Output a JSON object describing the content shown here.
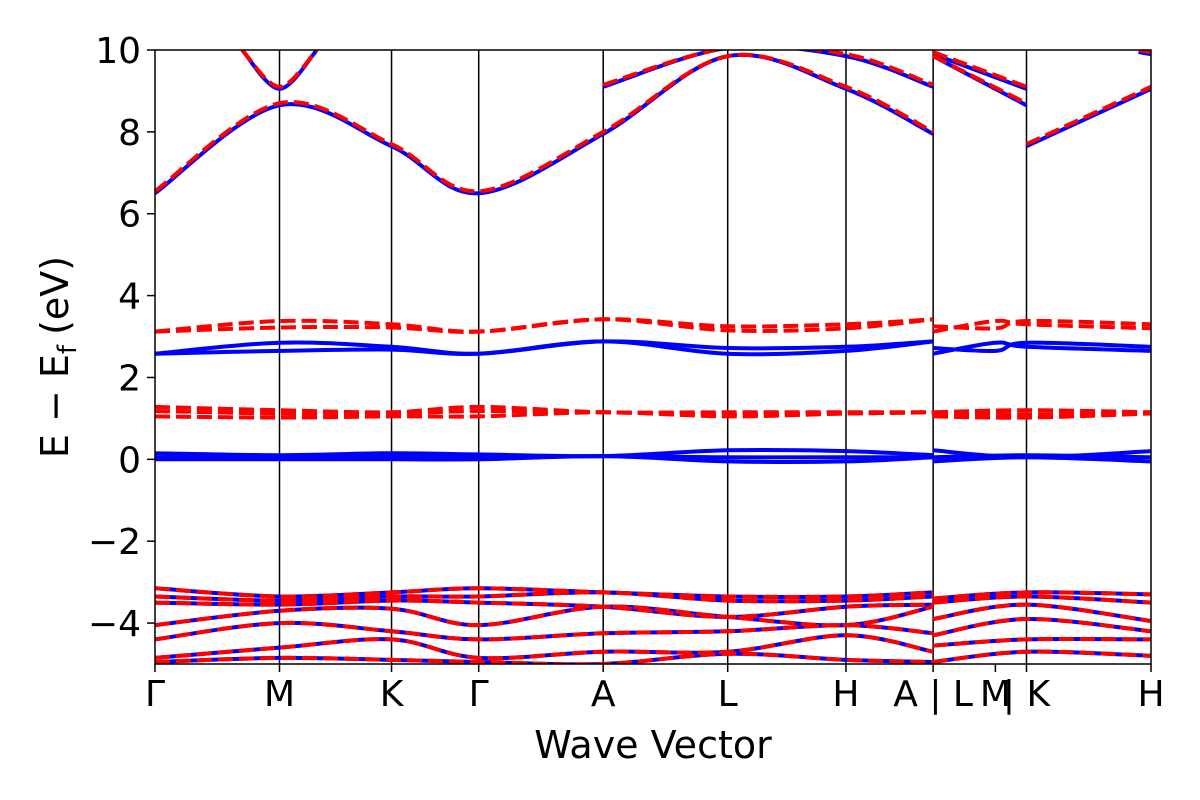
{
  "chart_data": {
    "type": "line",
    "title": "",
    "xlabel": "Wave Vector",
    "ylabel": "E − E",
    "ylabel_subscript": "f",
    "ylabel_unit": "(eV)",
    "ylim": [
      -5,
      10
    ],
    "yticks": [
      10,
      8,
      6,
      4,
      2,
      0,
      -2,
      -4
    ],
    "ytick_labels": [
      "10",
      "8",
      "6",
      "4",
      "2",
      "0",
      "−2",
      "−4"
    ],
    "x_path": [
      0,
      1.0,
      1.9,
      2.6,
      3.6,
      4.6,
      5.55,
      6.25,
      6.25,
      7.0,
      7.0,
      8.0
    ],
    "kpoint_labels": [
      {
        "x": 0,
        "label": "Γ"
      },
      {
        "x": 1.0,
        "label": "M"
      },
      {
        "x": 1.9,
        "label": "K"
      },
      {
        "x": 2.6,
        "label": "Γ"
      },
      {
        "x": 3.6,
        "label": "A"
      },
      {
        "x": 4.6,
        "label": "L"
      },
      {
        "x": 5.55,
        "label": "H"
      },
      {
        "x": 6.25,
        "label": "A | L"
      },
      {
        "x": 6.75,
        "label": "M"
      },
      {
        "x": 7.0,
        "label": "| K"
      },
      {
        "x": 8.0,
        "label": "H"
      }
    ],
    "xlim": [
      0,
      8.0
    ],
    "vlines": [
      1.0,
      1.9,
      2.6,
      3.6,
      4.6,
      5.55,
      6.25,
      7.0
    ],
    "grid": false,
    "series": [
      {
        "style": "solid",
        "color": "#0000ff",
        "bands": [
          {
            "x": [
              0,
              1.0,
              1.9,
              2.6,
              3.6,
              4.6,
              5.55,
              6.25
            ],
            "y": [
              6.5,
              8.65,
              7.65,
              6.5,
              7.95,
              9.85,
              9.05,
              7.95
            ]
          },
          {
            "x": [
              0.7,
              1.0,
              1.3
            ],
            "y": [
              10.0,
              9.05,
              10.0
            ]
          },
          {
            "x": [
              3.6,
              4.6,
              5.55,
              6.25
            ],
            "y": [
              9.1,
              10.05,
              9.85,
              9.1
            ]
          },
          {
            "x": [
              6.25,
              7.0
            ],
            "y": [
              9.85,
              8.65
            ]
          },
          {
            "x": [
              6.25,
              7.0
            ],
            "y": [
              9.9,
              9.05
            ]
          },
          {
            "x": [
              7.0,
              8.0
            ],
            "y": [
              7.65,
              9.05
            ]
          },
          {
            "x": [
              7.9,
              8.0
            ],
            "y": [
              9.95,
              9.9
            ]
          },
          {
            "x": [
              0,
              1.0,
              1.9,
              2.6,
              3.6,
              4.6,
              5.55,
              6.25
            ],
            "y": [
              2.58,
              2.85,
              2.75,
              2.58,
              2.88,
              2.72,
              2.75,
              2.88
            ]
          },
          {
            "x": [
              0,
              1.0,
              1.9,
              2.6,
              3.6,
              4.6,
              5.55,
              6.25
            ],
            "y": [
              2.58,
              2.65,
              2.68,
              2.58,
              2.88,
              2.58,
              2.65,
              2.88
            ]
          },
          {
            "x": [
              6.25,
              6.75,
              7.0,
              8.0
            ],
            "y": [
              2.72,
              2.65,
              2.85,
              2.75
            ]
          },
          {
            "x": [
              6.25,
              6.75,
              7.0,
              8.0
            ],
            "y": [
              2.58,
              2.85,
              2.75,
              2.65
            ]
          },
          {
            "x": [
              0,
              1.0,
              1.9,
              2.6,
              3.6,
              4.6,
              5.55,
              6.25
            ],
            "y": [
              0.15,
              0.1,
              0.15,
              0.12,
              0.08,
              0.22,
              0.2,
              0.1
            ]
          },
          {
            "x": [
              0,
              1.0,
              1.9,
              2.6,
              3.6,
              4.6,
              5.55,
              6.25
            ],
            "y": [
              0.05,
              0.05,
              0.08,
              0.05,
              0.08,
              0.05,
              0.05,
              0.05
            ]
          },
          {
            "x": [
              0,
              1.0,
              1.9,
              2.6,
              3.6,
              4.6,
              5.55,
              6.25
            ],
            "y": [
              0.0,
              0.0,
              0.0,
              0.0,
              0.08,
              -0.05,
              -0.05,
              0.05
            ]
          },
          {
            "x": [
              6.25,
              7.0,
              8.0
            ],
            "y": [
              0.22,
              0.05,
              0.2
            ]
          },
          {
            "x": [
              6.25,
              7.0,
              8.0
            ],
            "y": [
              0.05,
              0.1,
              0.05
            ]
          },
          {
            "x": [
              6.25,
              7.0,
              8.0
            ],
            "y": [
              -0.05,
              0.05,
              -0.05
            ]
          },
          {
            "x": [
              0,
              1.0,
              1.9,
              2.6,
              3.6,
              4.6,
              5.55,
              6.25
            ],
            "y": [
              -3.15,
              -3.35,
              -3.25,
              -3.15,
              -3.25,
              -3.35,
              -3.35,
              -3.25
            ]
          },
          {
            "x": [
              0,
              1.0,
              1.9,
              2.6,
              3.6,
              4.6,
              5.55,
              6.25
            ],
            "y": [
              -3.35,
              -3.45,
              -3.35,
              -3.35,
              -3.25,
              -3.45,
              -3.45,
              -3.35
            ]
          },
          {
            "x": [
              0,
              1.0,
              1.9,
              2.6,
              3.6,
              4.6,
              5.55,
              6.25
            ],
            "y": [
              -3.5,
              -3.55,
              -3.45,
              -3.5,
              -3.6,
              -3.85,
              -3.6,
              -3.55
            ]
          },
          {
            "x": [
              0,
              1.0,
              1.9,
              2.6,
              3.6,
              4.6,
              5.55,
              6.25
            ],
            "y": [
              -4.05,
              -3.7,
              -3.65,
              -4.05,
              -3.6,
              -3.85,
              -4.05,
              -3.6
            ]
          },
          {
            "x": [
              0,
              1.0,
              1.9,
              2.6,
              3.6,
              4.6,
              5.55,
              6.25
            ],
            "y": [
              -4.4,
              -4.0,
              -4.2,
              -4.4,
              -4.25,
              -4.2,
              -4.05,
              -4.25
            ]
          },
          {
            "x": [
              0,
              1.0,
              1.9,
              2.6,
              3.6,
              4.6,
              5.55,
              6.25
            ],
            "y": [
              -4.85,
              -4.6,
              -4.4,
              -4.85,
              -4.7,
              -4.7,
              -4.3,
              -4.7
            ]
          },
          {
            "x": [
              0,
              1.0,
              1.9,
              2.6,
              3.6,
              4.6,
              5.55,
              6.25
            ],
            "y": [
              -4.95,
              -4.85,
              -4.9,
              -4.95,
              -5.0,
              -4.75,
              -4.9,
              -4.95
            ]
          },
          {
            "x": [
              6.25,
              7.0,
              8.0
            ],
            "y": [
              -3.4,
              -3.25,
              -3.3
            ]
          },
          {
            "x": [
              6.25,
              7.0,
              8.0
            ],
            "y": [
              -3.5,
              -3.35,
              -3.5
            ]
          },
          {
            "x": [
              6.25,
              7.0,
              8.0
            ],
            "y": [
              -3.9,
              -3.55,
              -3.95
            ]
          },
          {
            "x": [
              6.25,
              7.0,
              8.0
            ],
            "y": [
              -4.3,
              -3.9,
              -4.2
            ]
          },
          {
            "x": [
              6.25,
              7.0,
              8.0
            ],
            "y": [
              -4.55,
              -4.4,
              -4.4
            ]
          },
          {
            "x": [
              6.25,
              7.0,
              8.0
            ],
            "y": [
              -4.95,
              -4.7,
              -4.8
            ]
          }
        ]
      },
      {
        "style": "dashed",
        "color": "#ff0000",
        "bands": [
          {
            "x": [
              0,
              1.0,
              1.9,
              2.6,
              3.6,
              4.6,
              5.55,
              6.25
            ],
            "y": [
              6.55,
              8.7,
              7.7,
              6.55,
              8.0,
              9.85,
              9.1,
              8.0
            ]
          },
          {
            "x": [
              0.7,
              1.0,
              1.3
            ],
            "y": [
              10.0,
              9.1,
              10.0
            ]
          },
          {
            "x": [
              3.6,
              4.6,
              5.55,
              6.25
            ],
            "y": [
              9.15,
              10.05,
              9.9,
              9.15
            ]
          },
          {
            "x": [
              6.25,
              7.0
            ],
            "y": [
              9.85,
              8.7
            ]
          },
          {
            "x": [
              6.25,
              7.0
            ],
            "y": [
              9.95,
              9.1
            ]
          },
          {
            "x": [
              7.0,
              8.0
            ],
            "y": [
              7.7,
              9.1
            ]
          },
          {
            "x": [
              7.9,
              8.0
            ],
            "y": [
              10.0,
              9.95
            ]
          },
          {
            "x": [
              0,
              1.0,
              1.9,
              2.6,
              3.6,
              4.6,
              5.55,
              6.25
            ],
            "y": [
              3.12,
              3.38,
              3.3,
              3.12,
              3.42,
              3.25,
              3.3,
              3.42
            ]
          },
          {
            "x": [
              0,
              1.0,
              1.9,
              2.6,
              3.6,
              4.6,
              5.55,
              6.25
            ],
            "y": [
              3.12,
              3.22,
              3.22,
              3.12,
              3.42,
              3.15,
              3.2,
              3.42
            ]
          },
          {
            "x": [
              6.25,
              6.75,
              7.0,
              8.0
            ],
            "y": [
              3.25,
              3.2,
              3.38,
              3.3
            ]
          },
          {
            "x": [
              6.25,
              6.75,
              7.0,
              8.0
            ],
            "y": [
              3.12,
              3.38,
              3.3,
              3.2
            ]
          },
          {
            "x": [
              0,
              1.0,
              1.9,
              2.6,
              3.6,
              4.6,
              5.55,
              6.25
            ],
            "y": [
              1.28,
              1.2,
              1.15,
              1.28,
              1.15,
              1.15,
              1.15,
              1.15
            ]
          },
          {
            "x": [
              0,
              1.0,
              1.9,
              2.6,
              3.6,
              4.6,
              5.55,
              6.25
            ],
            "y": [
              1.18,
              1.12,
              1.12,
              1.18,
              1.15,
              1.1,
              1.12,
              1.15
            ]
          },
          {
            "x": [
              0,
              1.0,
              1.9,
              2.6,
              3.6,
              4.6,
              5.55,
              6.25
            ],
            "y": [
              1.05,
              1.02,
              1.05,
              1.05,
              1.15,
              1.05,
              1.12,
              1.15
            ]
          },
          {
            "x": [
              6.25,
              7.0,
              8.0
            ],
            "y": [
              1.15,
              1.2,
              1.15
            ]
          },
          {
            "x": [
              6.25,
              7.0,
              8.0
            ],
            "y": [
              1.12,
              1.1,
              1.12
            ]
          },
          {
            "x": [
              6.25,
              7.0,
              8.0
            ],
            "y": [
              1.05,
              1.02,
              1.12
            ]
          },
          {
            "x": [
              0,
              1.0,
              1.9,
              2.6,
              3.6,
              4.6,
              5.55,
              6.25
            ],
            "y": [
              -3.15,
              -3.35,
              -3.25,
              -3.15,
              -3.25,
              -3.35,
              -3.35,
              -3.25
            ]
          },
          {
            "x": [
              0,
              1.0,
              1.9,
              2.6,
              3.6,
              4.6,
              5.55,
              6.25
            ],
            "y": [
              -3.35,
              -3.45,
              -3.35,
              -3.35,
              -3.25,
              -3.45,
              -3.45,
              -3.35
            ]
          },
          {
            "x": [
              0,
              1.0,
              1.9,
              2.6,
              3.6,
              4.6,
              5.55,
              6.25
            ],
            "y": [
              -3.5,
              -3.55,
              -3.45,
              -3.5,
              -3.6,
              -3.85,
              -3.6,
              -3.55
            ]
          },
          {
            "x": [
              0,
              1.0,
              1.9,
              2.6,
              3.6,
              4.6,
              5.55,
              6.25
            ],
            "y": [
              -4.05,
              -3.7,
              -3.65,
              -4.05,
              -3.6,
              -3.85,
              -4.05,
              -3.6
            ]
          },
          {
            "x": [
              0,
              1.0,
              1.9,
              2.6,
              3.6,
              4.6,
              5.55,
              6.25
            ],
            "y": [
              -4.4,
              -4.0,
              -4.2,
              -4.4,
              -4.25,
              -4.2,
              -4.05,
              -4.25
            ]
          },
          {
            "x": [
              0,
              1.0,
              1.9,
              2.6,
              3.6,
              4.6,
              5.55,
              6.25
            ],
            "y": [
              -4.85,
              -4.6,
              -4.4,
              -4.85,
              -4.7,
              -4.7,
              -4.3,
              -4.7
            ]
          },
          {
            "x": [
              0,
              1.0,
              1.9,
              2.6,
              3.6,
              4.6,
              5.55,
              6.25
            ],
            "y": [
              -4.95,
              -4.85,
              -4.9,
              -4.95,
              -5.0,
              -4.75,
              -4.9,
              -4.95
            ]
          },
          {
            "x": [
              6.25,
              7.0,
              8.0
            ],
            "y": [
              -3.4,
              -3.25,
              -3.3
            ]
          },
          {
            "x": [
              6.25,
              7.0,
              8.0
            ],
            "y": [
              -3.5,
              -3.35,
              -3.5
            ]
          },
          {
            "x": [
              6.25,
              7.0,
              8.0
            ],
            "y": [
              -3.9,
              -3.55,
              -3.95
            ]
          },
          {
            "x": [
              6.25,
              7.0,
              8.0
            ],
            "y": [
              -4.3,
              -3.9,
              -4.2
            ]
          },
          {
            "x": [
              6.25,
              7.0,
              8.0
            ],
            "y": [
              -4.55,
              -4.4,
              -4.4
            ]
          },
          {
            "x": [
              6.25,
              7.0,
              8.0
            ],
            "y": [
              -4.95,
              -4.7,
              -4.8
            ]
          }
        ]
      }
    ]
  }
}
